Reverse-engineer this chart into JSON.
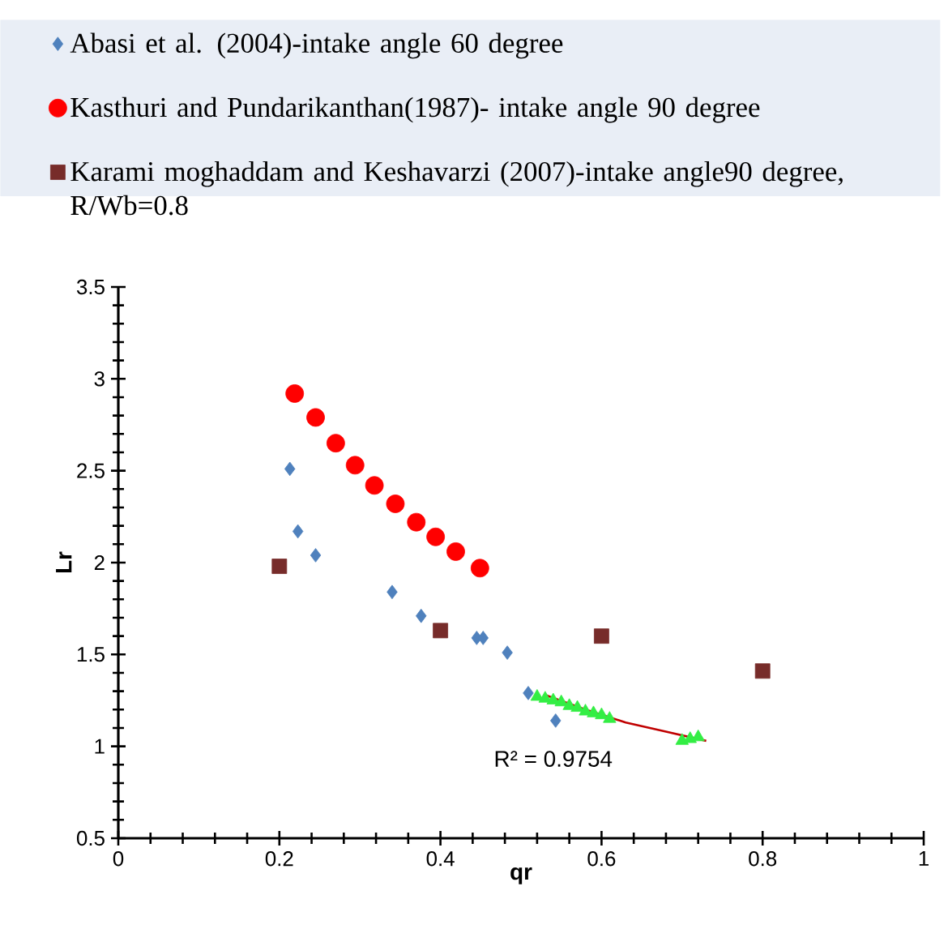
{
  "chart_data": {
    "type": "scatter",
    "xlabel": "qr",
    "ylabel": "Lr",
    "xlim": [
      0,
      1
    ],
    "ylim": [
      0.5,
      3.5
    ],
    "xticks": [
      0,
      0.2,
      0.4,
      0.6,
      0.8,
      1
    ],
    "yticks": [
      0.5,
      1,
      1.5,
      2,
      2.5,
      3,
      3.5
    ],
    "legend": "top",
    "annotations": [
      "R² = 0.9754"
    ],
    "series": [
      {
        "name": "Abasi et al. (2004)-intake angle 60 degree",
        "color": "#4f81bd",
        "marker": "diamond",
        "x": [
          0.213,
          0.223,
          0.245,
          0.34,
          0.376,
          0.445,
          0.453,
          0.483,
          0.509,
          0.543
        ],
        "values": [
          2.51,
          2.17,
          2.04,
          1.84,
          1.71,
          1.59,
          1.59,
          1.51,
          1.29,
          1.14
        ]
      },
      {
        "name": "Kasthuri and Pundarikanthan(1987)- intake angle 90 degree",
        "color": "#ff0000",
        "marker": "circle",
        "x": [
          0.219,
          0.245,
          0.27,
          0.294,
          0.318,
          0.344,
          0.37,
          0.394,
          0.419,
          0.449
        ],
        "values": [
          2.92,
          2.79,
          2.65,
          2.53,
          2.42,
          2.32,
          2.22,
          2.14,
          2.06,
          1.97
        ]
      },
      {
        "name": "Karami moghaddam and Keshavarzi (2007)-intake angle90 degree, R/Wb=0.8",
        "color": "#772c2a",
        "marker": "square",
        "x": [
          0.2,
          0.4,
          0.6,
          0.8
        ],
        "values": [
          1.98,
          1.63,
          1.6,
          1.41
        ]
      },
      {
        "color": "#33ee44",
        "marker": "triangle",
        "x": [
          0.52,
          0.53,
          0.54,
          0.55,
          0.56,
          0.57,
          0.58,
          0.59,
          0.6,
          0.61,
          0.7,
          0.71,
          0.72
        ],
        "values": [
          1.27,
          1.26,
          1.25,
          1.24,
          1.22,
          1.21,
          1.19,
          1.18,
          1.17,
          1.15,
          1.03,
          1.04,
          1.05
        ]
      },
      {
        "type": "line",
        "color": "#c00000",
        "marker": "none",
        "x": [
          0.53,
          0.58,
          0.63,
          0.68,
          0.73
        ],
        "values": [
          1.28,
          1.2,
          1.13,
          1.08,
          1.03
        ]
      }
    ]
  }
}
